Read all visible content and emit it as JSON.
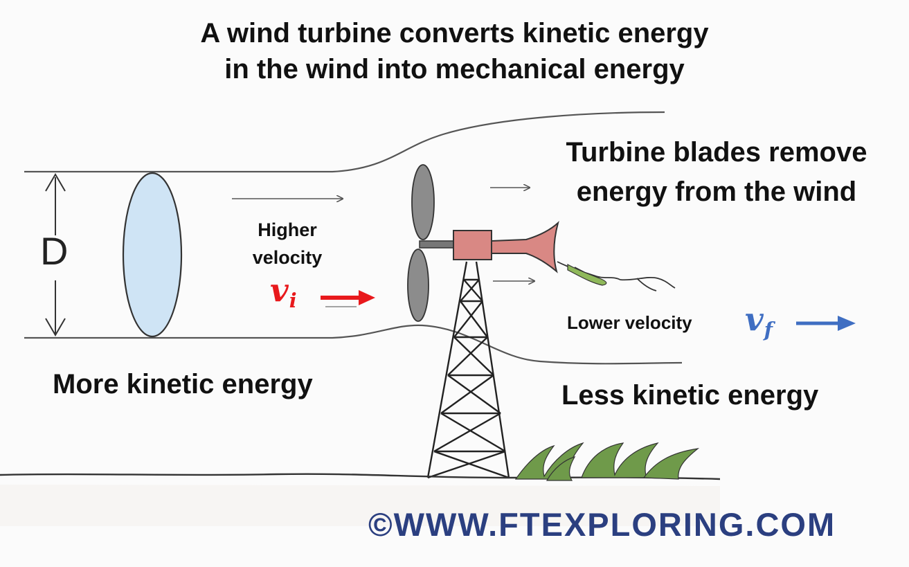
{
  "title": {
    "line1": "A wind turbine converts kinetic energy",
    "line2": "in the wind into mechanical energy"
  },
  "labels": {
    "diameter": "D",
    "higher_line1": "Higher",
    "higher_line2": "velocity",
    "v_initial": "v",
    "v_initial_sub": "i",
    "blades_line1": "Turbine blades remove",
    "blades_line2": "energy from the wind",
    "lower_velocity": "Lower velocity",
    "v_final": "v",
    "v_final_sub": "f",
    "more_energy": "More kinetic energy",
    "less_energy": "Less kinetic energy"
  },
  "watermark": "©WWW.FTEXPLORING.COM",
  "colors": {
    "v_initial": "#e8191c",
    "v_final": "#3f6ec2",
    "disk": "#cfe4f5",
    "nacelle": "#d98884",
    "blade": "#8c8c8c",
    "grass": "#6f9a4a",
    "watermark": "#2b3f80"
  }
}
